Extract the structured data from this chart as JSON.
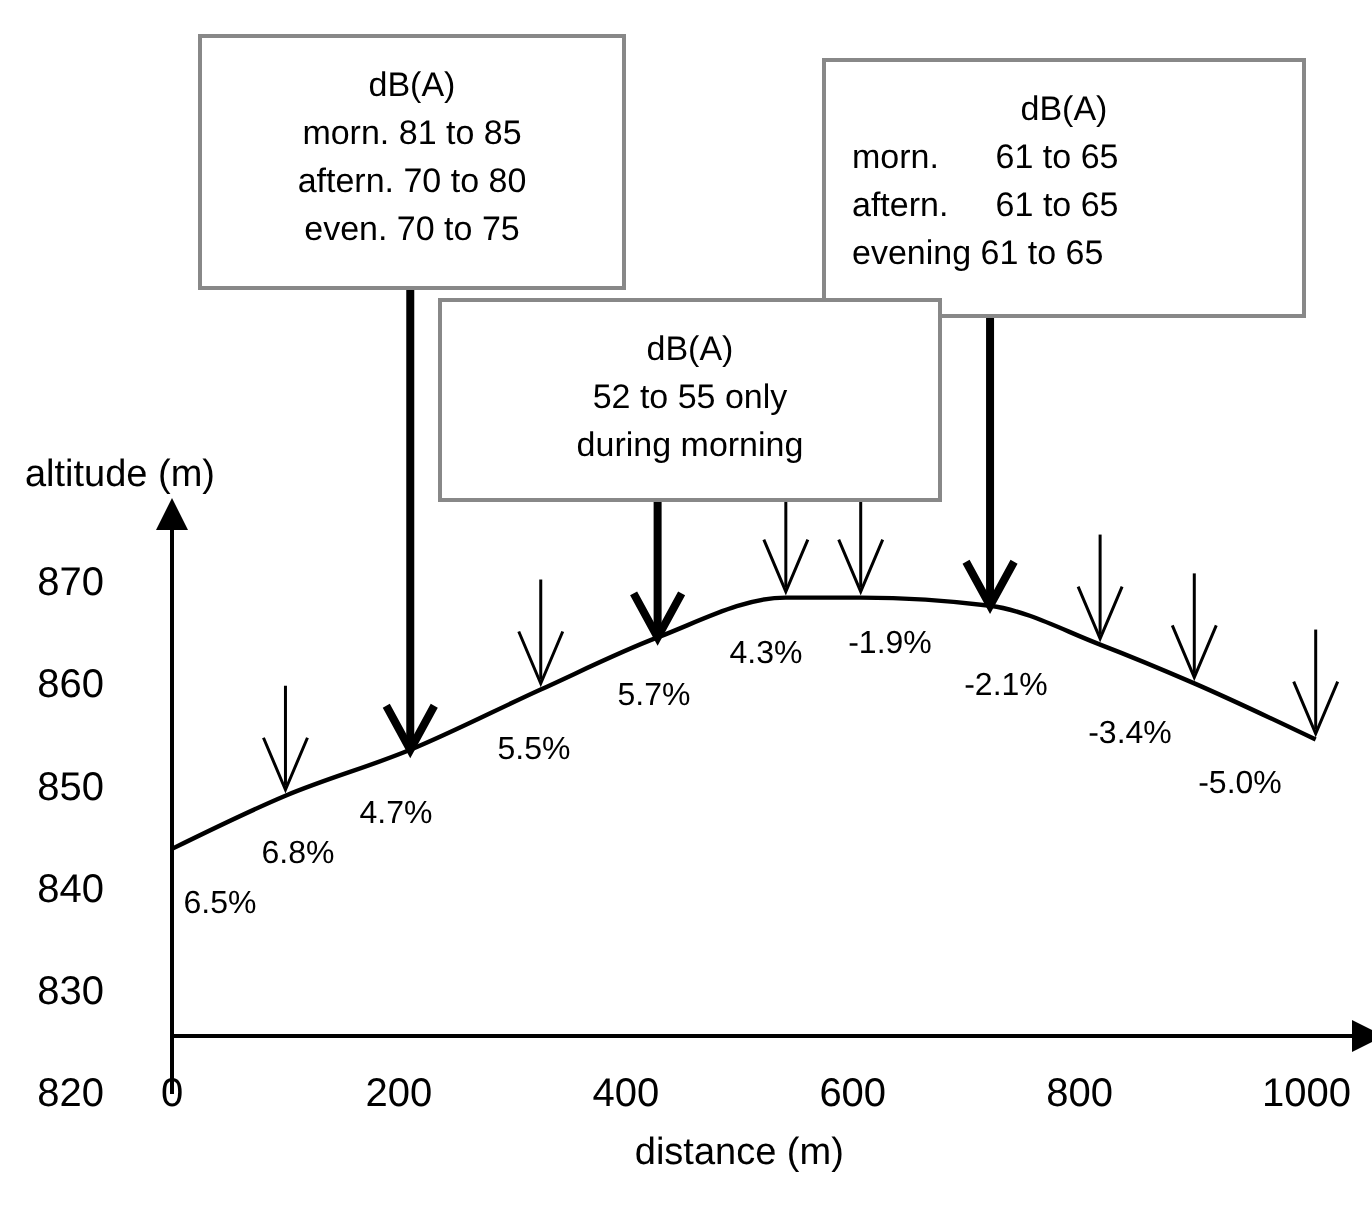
{
  "chart_data": {
    "type": "line",
    "xlabel": "distance (m)",
    "ylabel": "altitude (m)",
    "x": [
      0,
      100,
      210,
      325,
      428,
      541,
      607,
      721,
      818,
      901,
      1008
    ],
    "values": [
      844,
      849.2,
      853.7,
      859.6,
      864.7,
      868.6,
      868.6,
      867.8,
      864,
      860.2,
      854.7
    ],
    "color": "#000000",
    "marker": "none",
    "line_style": "solid",
    "xlim": [
      0,
      1040
    ],
    "xticks": [
      0,
      200,
      400,
      600,
      800,
      1000
    ],
    "ylim": [
      820,
      876
    ],
    "yticks": [
      820,
      830,
      840,
      850,
      860,
      870
    ],
    "annotations": [
      {
        "text": "dB(A)\nmorn. 81 to 85\naftern. 70 to 80\neven. 70 to 75",
        "x": 210,
        "y": 853.7
      },
      {
        "text": "dB(A)\nmorn.      61 to 65\naftern.     61 to 65\nevening 61 to 65",
        "x": 721,
        "y": 867.8
      },
      {
        "text": "dB(A)\n52 to 55 only\nduring morning",
        "x": 428,
        "y": 864.7
      },
      "6.5%",
      "6.8%",
      "4.7%",
      "5.5%",
      "5.7%",
      "4.3%",
      "-1.9%",
      "-2.1%",
      "-3.4%",
      "-5.0%"
    ]
  }
}
